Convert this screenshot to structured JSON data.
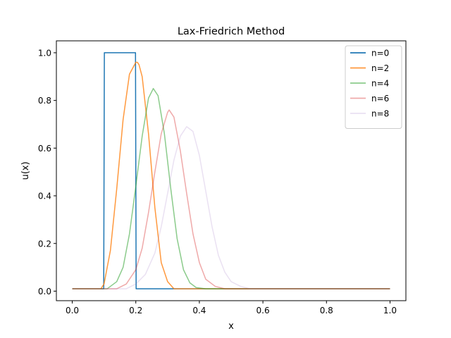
{
  "chart_data": {
    "type": "line",
    "title": "Lax-Friedrich Method",
    "xlabel": "x",
    "ylabel": "u(x)",
    "xlim": [
      -0.05,
      1.05
    ],
    "ylim": [
      -0.04,
      1.05
    ],
    "xticks": [
      0.0,
      0.2,
      0.4,
      0.6,
      0.8,
      1.0
    ],
    "xtick_labels": [
      "0.0",
      "0.2",
      "0.4",
      "0.6",
      "0.8",
      "1.0"
    ],
    "yticks": [
      0.0,
      0.2,
      0.4,
      0.6,
      0.8,
      1.0
    ],
    "ytick_labels": [
      "0.0",
      "0.2",
      "0.4",
      "0.6",
      "0.8",
      "1.0"
    ],
    "grid": false,
    "legend_position": "top-right",
    "series": [
      {
        "name": "n=0",
        "color": "#1f77b4",
        "opacity": 1.0,
        "x": [
          0.0,
          0.099,
          0.101,
          0.199,
          0.201,
          1.0
        ],
        "y": [
          0.01,
          0.01,
          1.0,
          1.0,
          0.01,
          0.01
        ]
      },
      {
        "name": "n=2",
        "color": "#ff7f0e",
        "opacity": 0.8,
        "x": [
          0.0,
          0.09,
          0.1,
          0.12,
          0.14,
          0.16,
          0.18,
          0.2,
          0.205,
          0.21,
          0.22,
          0.24,
          0.26,
          0.28,
          0.3,
          0.32,
          1.0
        ],
        "y": [
          0.01,
          0.01,
          0.03,
          0.17,
          0.43,
          0.72,
          0.91,
          0.96,
          0.96,
          0.95,
          0.9,
          0.66,
          0.35,
          0.12,
          0.04,
          0.01,
          0.01
        ]
      },
      {
        "name": "n=4",
        "color": "#2ca02c",
        "opacity": 0.55,
        "x": [
          0.0,
          0.11,
          0.14,
          0.16,
          0.18,
          0.2,
          0.22,
          0.24,
          0.255,
          0.27,
          0.29,
          0.31,
          0.33,
          0.35,
          0.37,
          0.39,
          0.42,
          1.0
        ],
        "y": [
          0.01,
          0.01,
          0.04,
          0.1,
          0.24,
          0.44,
          0.65,
          0.81,
          0.85,
          0.82,
          0.66,
          0.43,
          0.22,
          0.09,
          0.035,
          0.015,
          0.01,
          0.01
        ]
      },
      {
        "name": "n=6",
        "color": "#d62728",
        "opacity": 0.4,
        "x": [
          0.0,
          0.14,
          0.17,
          0.2,
          0.22,
          0.24,
          0.26,
          0.28,
          0.3,
          0.305,
          0.32,
          0.34,
          0.36,
          0.38,
          0.4,
          0.42,
          0.45,
          0.48,
          1.0
        ],
        "y": [
          0.01,
          0.01,
          0.03,
          0.09,
          0.18,
          0.33,
          0.5,
          0.66,
          0.75,
          0.76,
          0.73,
          0.59,
          0.41,
          0.24,
          0.12,
          0.05,
          0.02,
          0.01,
          0.01
        ]
      },
      {
        "name": "n=8",
        "color": "#9467bd",
        "opacity": 0.2,
        "x": [
          0.0,
          0.17,
          0.2,
          0.23,
          0.26,
          0.28,
          0.3,
          0.32,
          0.34,
          0.36,
          0.38,
          0.4,
          0.42,
          0.44,
          0.46,
          0.48,
          0.5,
          0.53,
          0.56,
          1.0
        ],
        "y": [
          0.01,
          0.01,
          0.03,
          0.07,
          0.16,
          0.27,
          0.41,
          0.55,
          0.65,
          0.69,
          0.67,
          0.57,
          0.42,
          0.27,
          0.15,
          0.08,
          0.04,
          0.02,
          0.01,
          0.01
        ]
      }
    ]
  }
}
